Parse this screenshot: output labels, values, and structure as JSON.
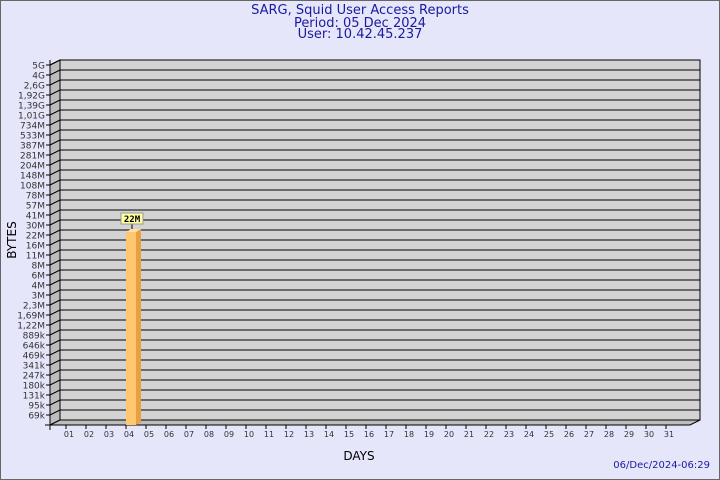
{
  "chart_data": {
    "type": "bar",
    "title": "SARG, Squid User Access Reports",
    "subtitle": [
      "Period: 05 Dec 2024",
      "User: 10.42.45.237"
    ],
    "xlabel": "DAYS",
    "ylabel": "BYTES",
    "categories": [
      "01",
      "02",
      "03",
      "04",
      "05",
      "06",
      "07",
      "08",
      "09",
      "10",
      "11",
      "12",
      "13",
      "14",
      "15",
      "16",
      "17",
      "18",
      "19",
      "20",
      "21",
      "22",
      "23",
      "24",
      "25",
      "26",
      "27",
      "28",
      "29",
      "30",
      "31"
    ],
    "y_ticks": [
      "5G",
      "4G",
      "2,6G",
      "1,92G",
      "1,39G",
      "1,01G",
      "734M",
      "533M",
      "387M",
      "281M",
      "204M",
      "148M",
      "108M",
      "78M",
      "57M",
      "41M",
      "30M",
      "22M",
      "16M",
      "11M",
      "8M",
      "6M",
      "4M",
      "3M",
      "2,3M",
      "1,69M",
      "1,22M",
      "889k",
      "646k",
      "469k",
      "341k",
      "247k",
      "180k",
      "131k",
      "95k",
      "69k"
    ],
    "y_scale": "log",
    "grid": true,
    "bars": [
      {
        "day": "05",
        "value_label": "22M"
      }
    ],
    "colors": {
      "bar": "#ffc870",
      "bar_side": "#e8a040",
      "wall": "#d3d3d3",
      "background": "#e6e6fa",
      "title": "#1a1aa0"
    }
  },
  "footer": {
    "timestamp": "06/Dec/2024-06:29"
  }
}
